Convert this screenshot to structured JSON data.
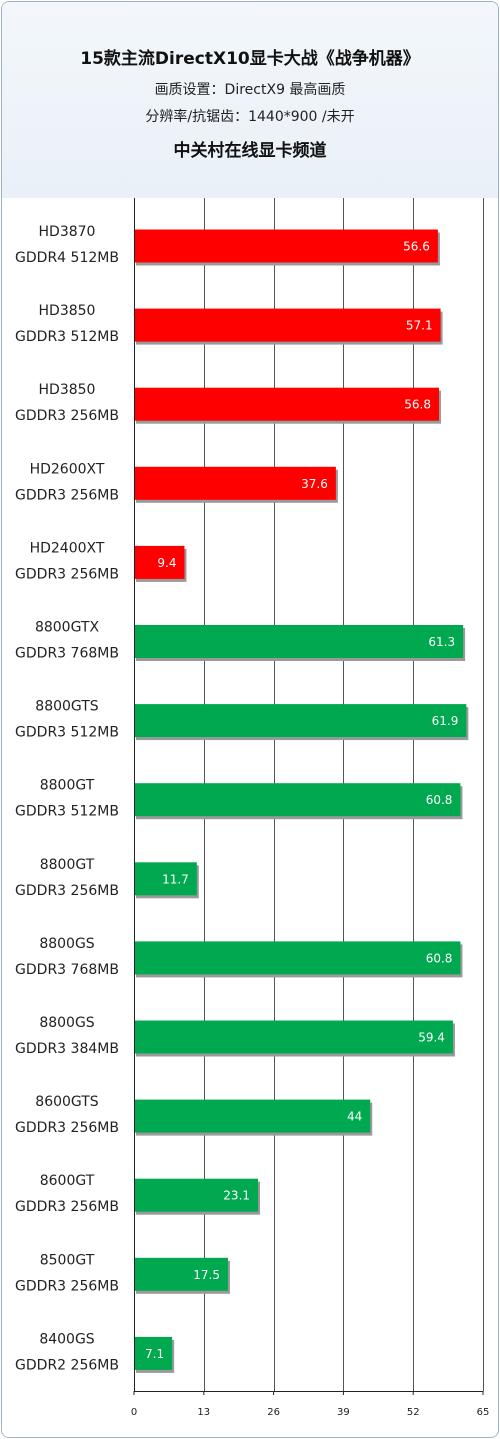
{
  "chart_data": {
    "type": "bar",
    "orientation": "horizontal",
    "title": "15款主流DirectX10显卡大战《战争机器》",
    "subtitle_lines": [
      "画质设置：DirectX9 最高画质",
      "分辨率/抗锯齿：1440*900 /未开",
      "中关村在线显卡频道"
    ],
    "categories": [
      [
        "HD3870",
        "GDDR4 512MB"
      ],
      [
        "HD3850",
        "GDDR3 512MB"
      ],
      [
        "HD3850",
        "GDDR3 256MB"
      ],
      [
        "HD2600XT",
        "GDDR3 256MB"
      ],
      [
        "HD2400XT",
        "GDDR3 256MB"
      ],
      [
        "8800GTX",
        "GDDR3 768MB"
      ],
      [
        "8800GTS",
        "GDDR3 512MB"
      ],
      [
        "8800GT",
        "GDDR3 512MB"
      ],
      [
        "8800GT",
        "GDDR3 256MB"
      ],
      [
        "8800GS",
        "GDDR3 768MB"
      ],
      [
        "8800GS",
        "GDDR3 384MB"
      ],
      [
        "8600GTS",
        "GDDR3 256MB"
      ],
      [
        "8600GT",
        "GDDR3 256MB"
      ],
      [
        "8500GT",
        "GDDR3 256MB"
      ],
      [
        "8400GS",
        "GDDR2 256MB"
      ]
    ],
    "values": [
      56.6,
      57.1,
      56.8,
      37.6,
      9.4,
      61.3,
      61.9,
      60.8,
      11.7,
      60.8,
      59.4,
      44,
      23.1,
      17.5,
      7.1
    ],
    "value_labels": [
      "56.6",
      "57.1",
      "56.8",
      "37.6",
      "9.4",
      "61.3",
      "61.9",
      "60.8",
      "11.7",
      "60.8",
      "59.4",
      "44",
      "23.1",
      "17.5",
      "7.1"
    ],
    "bar_colors": [
      "#ff0000",
      "#ff0000",
      "#ff0000",
      "#ff0000",
      "#ff0000",
      "#00a84f",
      "#00a84f",
      "#00a84f",
      "#00a84f",
      "#00a84f",
      "#00a84f",
      "#00a84f",
      "#00a84f",
      "#00a84f",
      "#00a84f"
    ],
    "xlim": [
      0,
      65
    ],
    "xticks": [
      0,
      13,
      26,
      39,
      52,
      65
    ],
    "grid": true,
    "xlabel": "",
    "ylabel": ""
  }
}
